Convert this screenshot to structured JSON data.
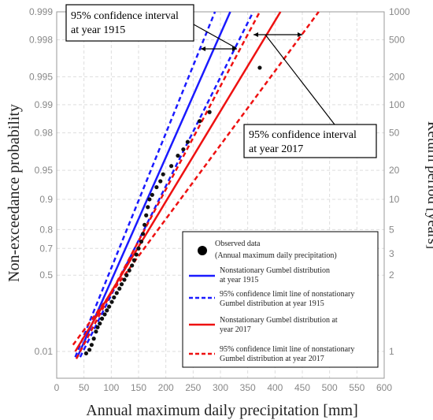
{
  "chart_data": {
    "type": "scatter",
    "xlabel": "Annual maximum daily precipitation [mm]",
    "ylabel_left": "Non-exceedance probability",
    "ylabel_right": "Return period  [years]",
    "x_ticks": [
      "0",
      "50",
      "100",
      "150",
      "200",
      "250",
      "300",
      "350",
      "400",
      "450",
      "500",
      "550",
      "600"
    ],
    "xlim": [
      0,
      600
    ],
    "y_scale": "gumbel",
    "left_ticks": [
      {
        "p": 0.999,
        "label": "0.999"
      },
      {
        "p": 0.998,
        "label": "0.998"
      },
      {
        "p": 0.995,
        "label": "0.995"
      },
      {
        "p": 0.99,
        "label": "0.99"
      },
      {
        "p": 0.98,
        "label": "0.98"
      },
      {
        "p": 0.95,
        "label": "0.95"
      },
      {
        "p": 0.9,
        "label": "0.9"
      },
      {
        "p": 0.8,
        "label": "0.8"
      },
      {
        "p": 0.7,
        "label": "0.7"
      },
      {
        "p": 0.5,
        "label": "0.5"
      },
      {
        "p": 0.01,
        "label": "0.01"
      }
    ],
    "right_ticks": [
      {
        "T": 1000,
        "label": "1000"
      },
      {
        "T": 500,
        "label": "500"
      },
      {
        "T": 200,
        "label": "200"
      },
      {
        "T": 100,
        "label": "100"
      },
      {
        "T": 50,
        "label": "50"
      },
      {
        "T": 20,
        "label": "20"
      },
      {
        "T": 10,
        "label": "10"
      },
      {
        "T": 5,
        "label": "5"
      },
      {
        "T": 3,
        "label": "3"
      },
      {
        "T": 2,
        "label": "2"
      },
      {
        "T": 1,
        "label": "1"
      }
    ],
    "grid": true,
    "legend_position": "bottom-right",
    "series": [
      {
        "name": "Nonstationary Gumbel distribution at year 1915",
        "style": "solid",
        "color": "#1a1aff",
        "points": [
          [
            38,
            0.005
          ],
          [
            318,
            0.999
          ]
        ]
      },
      {
        "name": "95% confidence limit line of nonstationary Gumbel distribution at year 1915 (upper)",
        "style": "dashed",
        "color": "#1a1aff",
        "points": [
          [
            43,
            0.005
          ],
          [
            360,
            0.999
          ]
        ]
      },
      {
        "name": "95% confidence limit line of nonstationary Gumbel distribution at year 1915 (lower)",
        "style": "dashed",
        "color": "#1a1aff",
        "points": [
          [
            34,
            0.005
          ],
          [
            290,
            0.999
          ]
        ]
      },
      {
        "name": "Nonstationary Gumbel distribution at year 2017",
        "style": "solid",
        "color": "#ee1111",
        "points": [
          [
            34,
            0.01
          ],
          [
            410,
            0.999
          ]
        ]
      },
      {
        "name": "95% confidence limit line of nonstationary Gumbel distribution at year 2017 (upper)",
        "style": "dashed",
        "color": "#ee1111",
        "points": [
          [
            30,
            0.02
          ],
          [
            480,
            0.999
          ]
        ]
      },
      {
        "name": "95% confidence limit line of nonstationary Gumbel distribution at year 2017 (lower)",
        "style": "dashed",
        "color": "#ee1111",
        "points": [
          [
            36,
            0.004
          ],
          [
            372,
            0.999
          ]
        ]
      }
    ],
    "observed": {
      "name": "Observed data",
      "points": [
        [
          54,
          0.008
        ],
        [
          60,
          0.012
        ],
        [
          64,
          0.02
        ],
        [
          68,
          0.035
        ],
        [
          72,
          0.06
        ],
        [
          75,
          0.08
        ],
        [
          79,
          0.1
        ],
        [
          83,
          0.13
        ],
        [
          88,
          0.16
        ],
        [
          92,
          0.19
        ],
        [
          96,
          0.22
        ],
        [
          101,
          0.26
        ],
        [
          105,
          0.3
        ],
        [
          110,
          0.34
        ],
        [
          115,
          0.38
        ],
        [
          119,
          0.42
        ],
        [
          124,
          0.46
        ],
        [
          128,
          0.5
        ],
        [
          133,
          0.54
        ],
        [
          138,
          0.58
        ],
        [
          142,
          0.62
        ],
        [
          146,
          0.66
        ],
        [
          150,
          0.7
        ],
        [
          155,
          0.74
        ],
        [
          158,
          0.78
        ],
        [
          161,
          0.82
        ],
        [
          164,
          0.855
        ],
        [
          167,
          0.88
        ],
        [
          170,
          0.9
        ],
        [
          175,
          0.91
        ],
        [
          183,
          0.925
        ],
        [
          190,
          0.935
        ],
        [
          195,
          0.945
        ],
        [
          210,
          0.955
        ],
        [
          222,
          0.965
        ],
        [
          232,
          0.97
        ],
        [
          240,
          0.975
        ],
        [
          262,
          0.985
        ],
        [
          280,
          0.988
        ],
        [
          372,
          0.996
        ]
      ]
    },
    "annotations": [
      {
        "lines": [
          "95% confidence interval",
          "at year 1915"
        ]
      },
      {
        "lines": [
          "95% confidence interval",
          "at year 2017"
        ]
      }
    ],
    "legend": {
      "observed": [
        "Observed data",
        "(Annual maximum daily precipitation)"
      ],
      "s1915": [
        "Nonstationary Gumbel distribution",
        "at year 1915"
      ],
      "c1915": [
        "95% confidence limit line of nonstationary",
        "Gumbel distribution at year 1915"
      ],
      "s2017": [
        "Nonstationary Gumbel distribution at",
        "year 2017"
      ],
      "c2017": [
        "95% confidence limit line of nonstationary",
        "Gumbel distribution at year 2017"
      ]
    }
  }
}
